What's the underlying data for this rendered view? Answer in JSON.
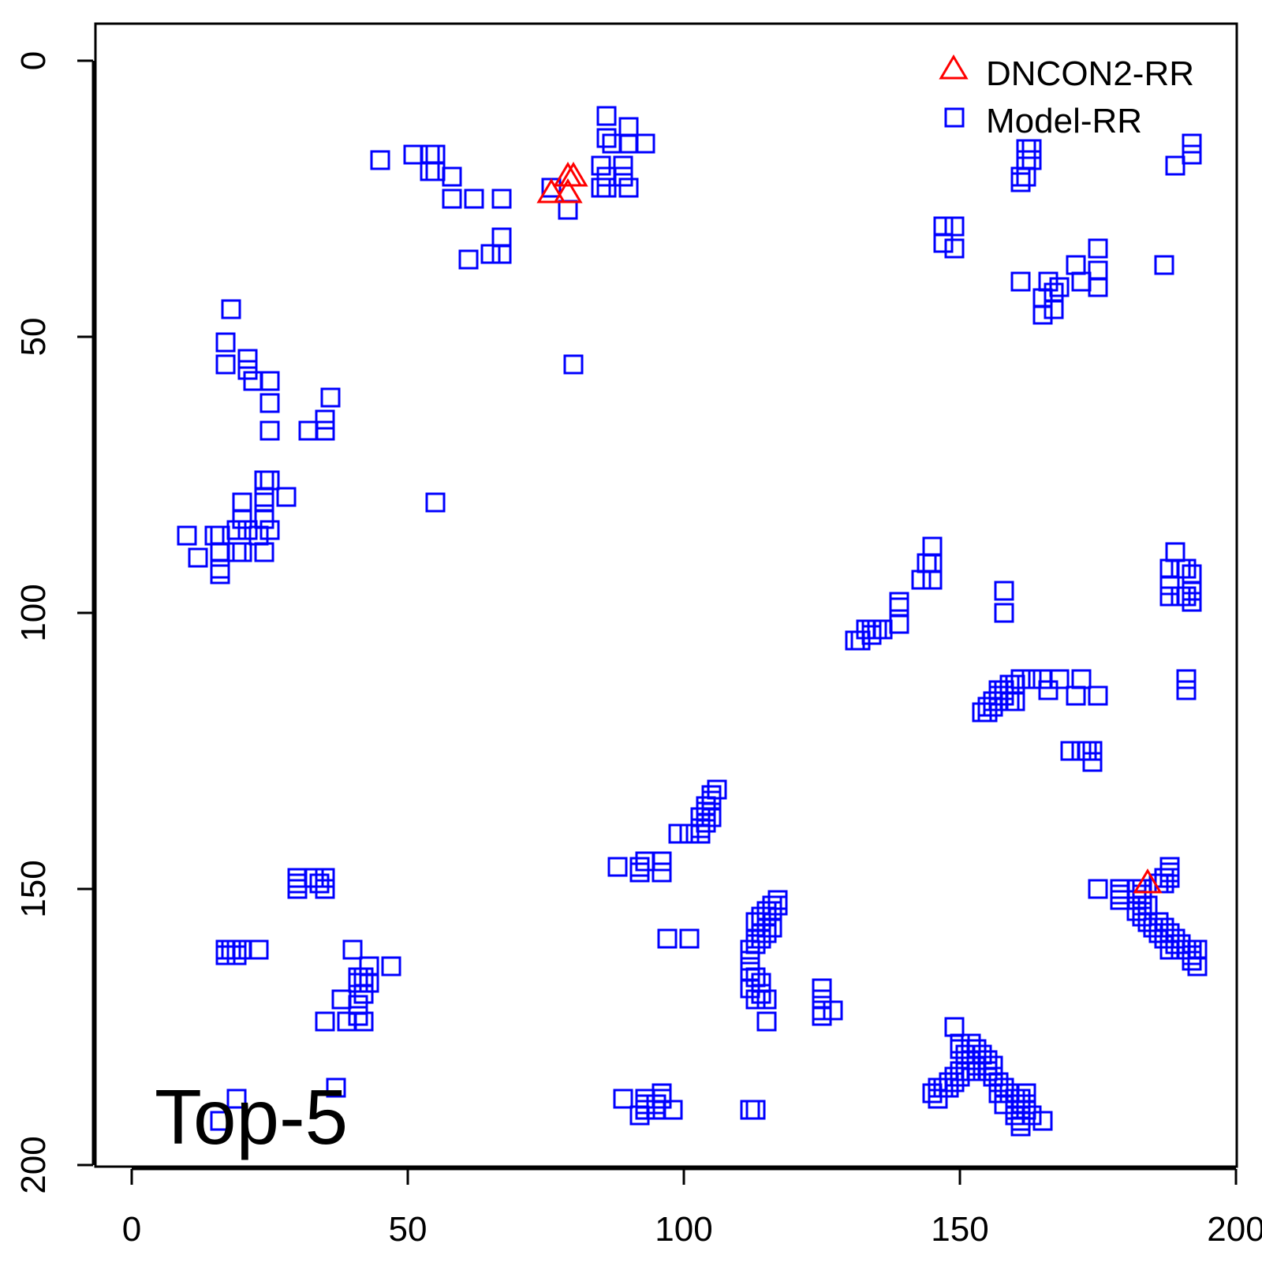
{
  "chart_data": {
    "type": "scatter",
    "title": "",
    "xlabel": "",
    "ylabel": "",
    "xlim": [
      -7,
      200
    ],
    "ylim": [
      200,
      -7
    ],
    "x_ticks": [
      0,
      50,
      100,
      150,
      200
    ],
    "y_ticks": [
      0,
      50,
      100,
      150,
      200
    ],
    "x_tick_labels": [
      "0",
      "50",
      "100",
      "150",
      "200"
    ],
    "y_tick_labels": [
      "0",
      "50",
      "100",
      "150",
      "200"
    ],
    "y_axis_inverted": true,
    "grid": false,
    "legend_position": "top-right",
    "annotation": "Top-5",
    "series": [
      {
        "name": "DNCON2-RR",
        "marker": "triangle",
        "color": "#ff0000",
        "points": [
          [
            76,
            24
          ],
          [
            79,
            24
          ],
          [
            79,
            21
          ],
          [
            80,
            21
          ],
          [
            184,
            149
          ]
        ]
      },
      {
        "name": "Model-RR",
        "marker": "square",
        "color": "#0000ff",
        "points": [
          [
            86,
            10
          ],
          [
            90,
            12
          ],
          [
            86,
            14
          ],
          [
            87,
            15
          ],
          [
            90,
            15
          ],
          [
            93,
            15
          ],
          [
            45,
            18
          ],
          [
            51,
            17
          ],
          [
            54,
            17
          ],
          [
            55,
            17
          ],
          [
            85,
            19
          ],
          [
            89,
            19
          ],
          [
            54,
            20
          ],
          [
            55,
            20
          ],
          [
            58,
            21
          ],
          [
            86,
            21
          ],
          [
            89,
            21
          ],
          [
            76,
            23
          ],
          [
            85,
            23
          ],
          [
            86,
            23
          ],
          [
            90,
            23
          ],
          [
            58,
            25
          ],
          [
            62,
            25
          ],
          [
            67,
            25
          ],
          [
            79,
            27
          ],
          [
            67,
            32
          ],
          [
            65,
            35
          ],
          [
            67,
            35
          ],
          [
            61,
            36
          ],
          [
            18,
            45
          ],
          [
            17,
            51
          ],
          [
            17,
            55
          ],
          [
            21,
            54
          ],
          [
            21,
            56
          ],
          [
            22,
            58
          ],
          [
            25,
            58
          ],
          [
            25,
            62
          ],
          [
            36,
            61
          ],
          [
            35,
            65
          ],
          [
            32,
            67
          ],
          [
            35,
            67
          ],
          [
            25,
            67
          ],
          [
            80,
            55
          ],
          [
            24,
            76
          ],
          [
            25,
            76
          ],
          [
            24,
            79
          ],
          [
            28,
            79
          ],
          [
            20,
            80
          ],
          [
            24,
            80
          ],
          [
            55,
            80
          ],
          [
            20,
            83
          ],
          [
            24,
            83
          ],
          [
            19,
            85
          ],
          [
            21,
            85
          ],
          [
            23,
            86
          ],
          [
            25,
            85
          ],
          [
            10,
            86
          ],
          [
            15,
            86
          ],
          [
            16,
            86
          ],
          [
            12,
            90
          ],
          [
            16,
            89
          ],
          [
            16,
            92
          ],
          [
            16,
            93
          ],
          [
            19,
            89
          ],
          [
            20,
            89
          ],
          [
            24,
            89
          ],
          [
            145,
            88
          ],
          [
            144,
            91
          ],
          [
            145,
            91
          ],
          [
            143,
            94
          ],
          [
            145,
            94
          ],
          [
            139,
            98
          ],
          [
            139,
            99
          ],
          [
            139,
            102
          ],
          [
            131,
            105
          ],
          [
            132,
            105
          ],
          [
            133,
            103
          ],
          [
            134,
            103
          ],
          [
            135,
            103
          ],
          [
            136,
            103
          ],
          [
            134,
            104
          ],
          [
            158,
            96
          ],
          [
            158,
            100
          ],
          [
            147,
            30
          ],
          [
            149,
            30
          ],
          [
            147,
            33
          ],
          [
            149,
            34
          ],
          [
            162,
            16
          ],
          [
            163,
            16
          ],
          [
            162,
            18
          ],
          [
            163,
            18
          ],
          [
            161,
            21
          ],
          [
            162,
            21
          ],
          [
            161,
            22
          ],
          [
            189,
            19
          ],
          [
            192,
            15
          ],
          [
            192,
            17
          ],
          [
            187,
            37
          ],
          [
            175,
            34
          ],
          [
            171,
            37
          ],
          [
            175,
            38
          ],
          [
            175,
            41
          ],
          [
            172,
            40
          ],
          [
            168,
            41
          ],
          [
            167,
            42
          ],
          [
            166,
            40
          ],
          [
            161,
            40
          ],
          [
            165,
            43
          ],
          [
            167,
            45
          ],
          [
            165,
            46
          ],
          [
            189,
            89
          ],
          [
            188,
            92
          ],
          [
            190,
            92
          ],
          [
            191,
            92
          ],
          [
            192,
            93
          ],
          [
            188,
            95
          ],
          [
            192,
            96
          ],
          [
            188,
            97
          ],
          [
            190,
            97
          ],
          [
            191,
            97
          ],
          [
            192,
            98
          ],
          [
            191,
            112
          ],
          [
            191,
            114
          ],
          [
            161,
            112
          ],
          [
            163,
            112
          ],
          [
            165,
            112
          ],
          [
            168,
            112
          ],
          [
            172,
            112
          ],
          [
            159,
            113
          ],
          [
            160,
            113
          ],
          [
            157,
            114
          ],
          [
            158,
            114
          ],
          [
            157,
            115
          ],
          [
            158,
            115
          ],
          [
            156,
            116
          ],
          [
            157,
            116
          ],
          [
            155,
            117
          ],
          [
            156,
            117
          ],
          [
            154,
            118
          ],
          [
            155,
            118
          ],
          [
            159,
            116
          ],
          [
            160,
            116
          ],
          [
            166,
            114
          ],
          [
            171,
            115
          ],
          [
            175,
            115
          ],
          [
            170,
            125
          ],
          [
            172,
            125
          ],
          [
            173,
            125
          ],
          [
            174,
            125
          ],
          [
            174,
            127
          ],
          [
            106,
            132
          ],
          [
            105,
            133
          ],
          [
            105,
            134
          ],
          [
            104,
            135
          ],
          [
            104,
            136
          ],
          [
            103,
            137
          ],
          [
            105,
            137
          ],
          [
            104,
            138
          ],
          [
            103,
            139
          ],
          [
            103,
            140
          ],
          [
            99,
            140
          ],
          [
            101,
            140
          ],
          [
            96,
            145
          ],
          [
            93,
            145
          ],
          [
            92,
            146
          ],
          [
            88,
            146
          ],
          [
            92,
            147
          ],
          [
            96,
            147
          ],
          [
            97,
            159
          ],
          [
            101,
            159
          ],
          [
            188,
            146
          ],
          [
            188,
            147
          ],
          [
            187,
            148
          ],
          [
            188,
            148
          ],
          [
            186,
            149
          ],
          [
            187,
            149
          ],
          [
            175,
            150
          ],
          [
            179,
            150
          ],
          [
            182,
            150
          ],
          [
            183,
            150
          ],
          [
            179,
            151
          ],
          [
            183,
            151
          ],
          [
            179,
            152
          ],
          [
            182,
            152
          ],
          [
            183,
            153
          ],
          [
            184,
            153
          ],
          [
            182,
            154
          ],
          [
            183,
            155
          ],
          [
            184,
            156
          ],
          [
            186,
            156
          ],
          [
            185,
            157
          ],
          [
            187,
            157
          ],
          [
            186,
            158
          ],
          [
            188,
            158
          ],
          [
            187,
            159
          ],
          [
            189,
            159
          ],
          [
            189,
            160
          ],
          [
            190,
            160
          ],
          [
            188,
            161
          ],
          [
            190,
            161
          ],
          [
            191,
            161
          ],
          [
            192,
            161
          ],
          [
            193,
            161
          ],
          [
            192,
            162
          ],
          [
            192,
            163
          ],
          [
            193,
            164
          ],
          [
            117,
            152
          ],
          [
            116,
            153
          ],
          [
            117,
            153
          ],
          [
            115,
            154
          ],
          [
            116,
            154
          ],
          [
            114,
            155
          ],
          [
            115,
            155
          ],
          [
            113,
            156
          ],
          [
            114,
            156
          ],
          [
            115,
            157
          ],
          [
            116,
            157
          ],
          [
            114,
            158
          ],
          [
            115,
            158
          ],
          [
            113,
            159
          ],
          [
            114,
            159
          ],
          [
            113,
            160
          ],
          [
            112,
            161
          ],
          [
            112,
            163
          ],
          [
            112,
            165
          ],
          [
            113,
            166
          ],
          [
            114,
            167
          ],
          [
            112,
            168
          ],
          [
            114,
            169
          ],
          [
            113,
            170
          ],
          [
            115,
            170
          ],
          [
            115,
            174
          ],
          [
            125,
            168
          ],
          [
            125,
            170
          ],
          [
            125,
            172
          ],
          [
            127,
            172
          ],
          [
            125,
            173
          ],
          [
            17,
            161
          ],
          [
            18,
            161
          ],
          [
            19,
            161
          ],
          [
            20,
            161
          ],
          [
            23,
            161
          ],
          [
            17,
            162
          ],
          [
            19,
            162
          ],
          [
            40,
            161
          ],
          [
            43,
            164
          ],
          [
            47,
            164
          ],
          [
            41,
            166
          ],
          [
            42,
            166
          ],
          [
            41,
            167
          ],
          [
            43,
            167
          ],
          [
            42,
            169
          ],
          [
            38,
            170
          ],
          [
            41,
            171
          ],
          [
            41,
            173
          ],
          [
            35,
            174
          ],
          [
            39,
            174
          ],
          [
            42,
            174
          ],
          [
            30,
            148
          ],
          [
            33,
            148
          ],
          [
            35,
            148
          ],
          [
            30,
            149
          ],
          [
            34,
            149
          ],
          [
            30,
            150
          ],
          [
            35,
            150
          ],
          [
            149,
            175
          ],
          [
            150,
            178
          ],
          [
            152,
            178
          ],
          [
            150,
            179
          ],
          [
            153,
            179
          ],
          [
            151,
            180
          ],
          [
            152,
            180
          ],
          [
            154,
            180
          ],
          [
            152,
            181
          ],
          [
            155,
            181
          ],
          [
            153,
            182
          ],
          [
            156,
            182
          ],
          [
            150,
            183
          ],
          [
            151,
            183
          ],
          [
            152,
            183
          ],
          [
            153,
            183
          ],
          [
            155,
            183
          ],
          [
            149,
            184
          ],
          [
            150,
            184
          ],
          [
            148,
            185
          ],
          [
            149,
            185
          ],
          [
            146,
            186
          ],
          [
            147,
            186
          ],
          [
            148,
            186
          ],
          [
            156,
            184
          ],
          [
            157,
            185
          ],
          [
            158,
            186
          ],
          [
            159,
            187
          ],
          [
            160,
            188
          ],
          [
            161,
            188
          ],
          [
            161,
            189
          ],
          [
            162,
            189
          ],
          [
            162,
            190
          ],
          [
            160,
            191
          ],
          [
            163,
            191
          ],
          [
            161,
            192
          ],
          [
            165,
            192
          ],
          [
            145,
            187
          ],
          [
            146,
            188
          ],
          [
            162,
            187
          ],
          [
            160,
            190
          ],
          [
            157,
            187
          ],
          [
            158,
            189
          ],
          [
            161,
            193
          ],
          [
            37,
            186
          ],
          [
            19,
            188
          ],
          [
            16,
            192
          ],
          [
            89,
            188
          ],
          [
            93,
            188
          ],
          [
            96,
            188
          ],
          [
            93,
            189
          ],
          [
            95,
            189
          ],
          [
            93,
            190
          ],
          [
            95,
            190
          ],
          [
            98,
            190
          ],
          [
            112,
            190
          ],
          [
            113,
            190
          ],
          [
            96,
            187
          ],
          [
            92,
            191
          ]
        ]
      }
    ]
  }
}
